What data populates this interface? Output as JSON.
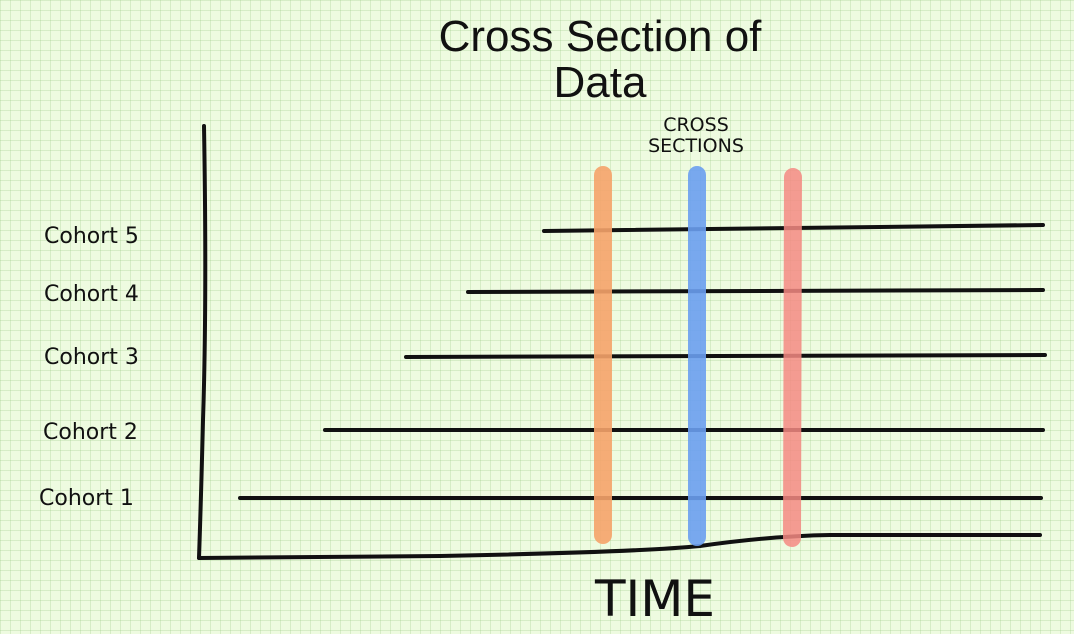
{
  "title_line1": "Cross Section of",
  "title_line2": "Data",
  "cross_sections_label_line1": "CROSS",
  "cross_sections_label_line2": "SECTIONS",
  "x_axis_label": "TIME",
  "cohorts": [
    {
      "label": "Cohort 5"
    },
    {
      "label": "Cohort 4"
    },
    {
      "label": "Cohort 3"
    },
    {
      "label": "Cohort 2"
    },
    {
      "label": "Cohort 1"
    }
  ],
  "cross_sections": [
    {
      "color": "#f5a36a"
    },
    {
      "color": "#6a9ff0"
    },
    {
      "color": "#f58a82"
    }
  ],
  "colors": {
    "background": "#eefbe0",
    "lines": "#111111"
  }
}
